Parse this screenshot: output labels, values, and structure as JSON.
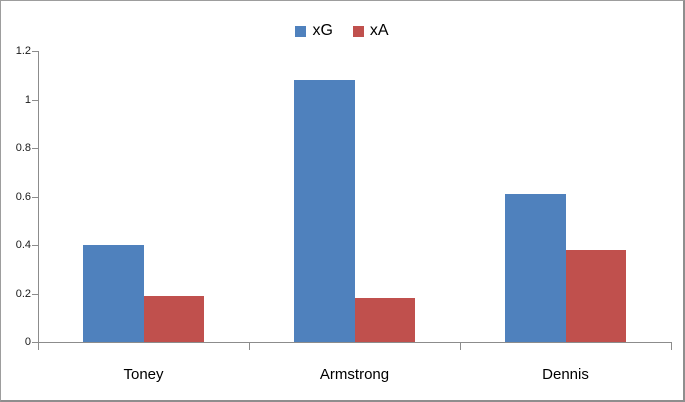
{
  "chart_data": {
    "type": "bar",
    "title": "",
    "categories": [
      "Toney",
      "Armstrong",
      "Dennis"
    ],
    "series": [
      {
        "name": "xG",
        "color": "#4F81BD",
        "values": [
          0.4,
          1.08,
          0.61
        ]
      },
      {
        "name": "xA",
        "color": "#C0504D",
        "values": [
          0.19,
          0.18,
          0.38
        ]
      }
    ],
    "ylim": [
      0,
      1.2
    ],
    "yticks": [
      0,
      0.2,
      0.4,
      0.6,
      0.8,
      1,
      1.2
    ],
    "ytick_labels": [
      "0",
      "0.2",
      "0.4",
      "0.6",
      "0.8",
      "1",
      "1.2"
    ],
    "grid": false,
    "legend_position": "top-center",
    "colors": {
      "axis": "#8C8C8C",
      "border": "#9D9D9D",
      "tick_label": "#1A1A1A",
      "category_label": "#000000",
      "background": "#FFFFFF"
    }
  }
}
